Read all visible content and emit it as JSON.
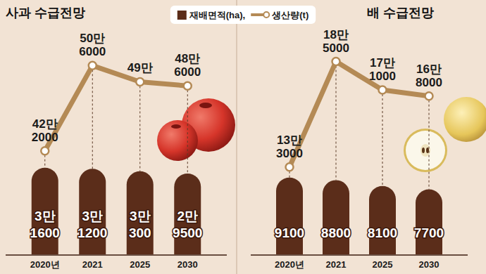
{
  "chart_data": [
    {
      "type": "bar",
      "title": "사과 수급전망",
      "categories": [
        "2020년",
        "2021",
        "2025",
        "2030"
      ],
      "series": [
        {
          "name": "재배면적(ha),",
          "type": "bar",
          "color": "#5b2d1a",
          "values": [
            31600,
            31200,
            30300,
            29500
          ],
          "value_labels": [
            "3만 1600",
            "3만 1200",
            "3만 300",
            "2만 9500"
          ]
        },
        {
          "name": "생산량(t)",
          "type": "line",
          "color": "#b48a55",
          "marker": "circle",
          "axis": "y2",
          "values": [
            422000,
            506000,
            490000,
            486000
          ],
          "value_labels": [
            "42만 2000",
            "50만 6000",
            "49만",
            "48만 6000"
          ]
        }
      ],
      "ylim": [
        0,
        80000
      ],
      "y2lim": [
        320000,
        536000
      ],
      "legend": "top",
      "data_labels": true,
      "tick_labels": "x"
    },
    {
      "type": "bar",
      "title": "배 수급전망",
      "categories": [
        "2020년",
        "2021",
        "2025",
        "2030"
      ],
      "series": [
        {
          "name": "재배면적(ha),",
          "type": "bar",
          "color": "#5b2d1a",
          "values": [
            9100,
            8800,
            8100,
            7700
          ]
        },
        {
          "name": "생산량(t)",
          "type": "line",
          "color": "#b48a55",
          "marker": "circle",
          "axis": "y2",
          "values": [
            133000,
            185000,
            171000,
            168000
          ],
          "value_labels": [
            "13만 3000",
            "18만 5000",
            "17만 1000",
            "16만 8000"
          ]
        }
      ],
      "ylim": [
        0,
        26000
      ],
      "y2lim": [
        90000,
        198000
      ],
      "data_labels": true,
      "tick_labels": "x"
    }
  ]
}
